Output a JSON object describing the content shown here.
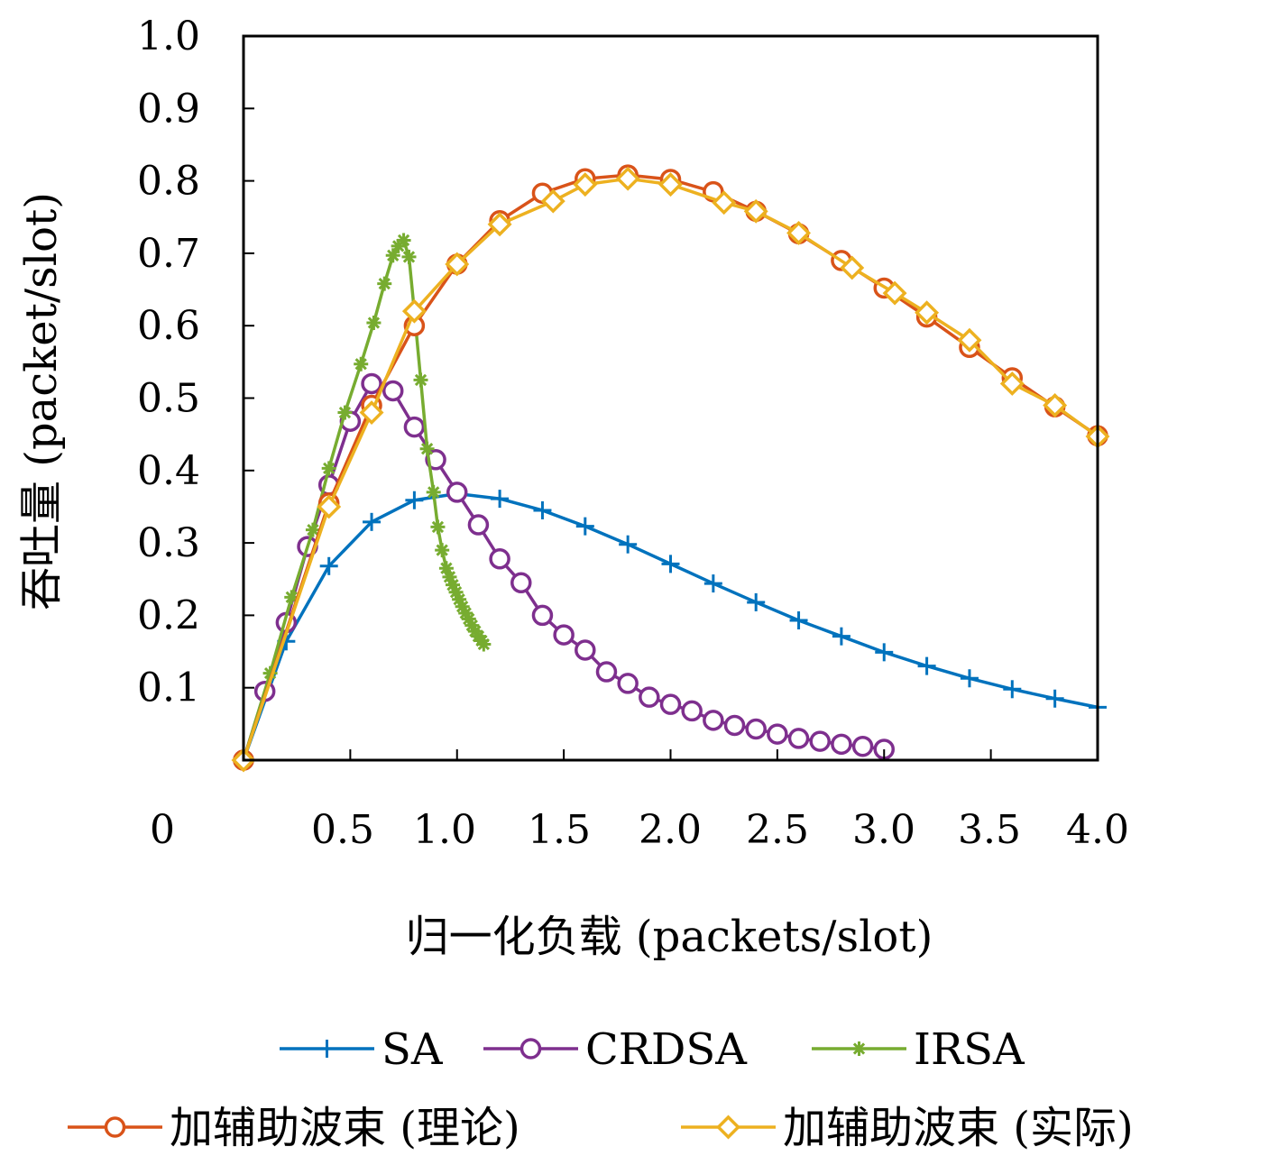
{
  "chart_data": {
    "type": "line",
    "title": "",
    "xlabel": "归一化负载 (packets/slot)",
    "ylabel": "吞吐量 (packet/slot)",
    "xlim": [
      0,
      4.0
    ],
    "ylim": [
      0,
      1.0
    ],
    "grid": false,
    "legend_position": "bottom",
    "x_tick_labels": [
      "0",
      "0.5",
      "1.0",
      "1.5",
      "2.0",
      "2.5",
      "3.0",
      "3.5",
      "4.0"
    ],
    "y_tick_labels": [
      "0.1",
      "0.2",
      "0.3",
      "0.4",
      "0.5",
      "0.6",
      "0.7",
      "0.8",
      "0.9",
      "1.0"
    ],
    "series": [
      {
        "name": "SA",
        "color": "#0072BD",
        "marker": "plus",
        "x": [
          0,
          0.2,
          0.4,
          0.6,
          0.8,
          1.0,
          1.2,
          1.4,
          1.6,
          1.8,
          2.0,
          2.2,
          2.4,
          2.6,
          2.8,
          3.0,
          3.2,
          3.4,
          3.6,
          3.8,
          4.0
        ],
        "y": [
          0,
          0.164,
          0.268,
          0.329,
          0.359,
          0.368,
          0.361,
          0.345,
          0.323,
          0.298,
          0.271,
          0.244,
          0.218,
          0.193,
          0.171,
          0.149,
          0.13,
          0.113,
          0.098,
          0.085,
          0.073
        ]
      },
      {
        "name": "CRDSA",
        "color": "#7E2F8E",
        "marker": "circle",
        "x": [
          0,
          0.1,
          0.2,
          0.3,
          0.4,
          0.5,
          0.6,
          0.7,
          0.8,
          0.9,
          1.0,
          1.1,
          1.2,
          1.3,
          1.4,
          1.5,
          1.6,
          1.7,
          1.8,
          1.9,
          2.0,
          2.1,
          2.2,
          2.3,
          2.4,
          2.5,
          2.6,
          2.7,
          2.8,
          2.9,
          3.0
        ],
        "y": [
          0,
          0.095,
          0.19,
          0.295,
          0.38,
          0.468,
          0.52,
          0.51,
          0.46,
          0.415,
          0.37,
          0.325,
          0.278,
          0.245,
          0.2,
          0.173,
          0.152,
          0.122,
          0.106,
          0.087,
          0.077,
          0.068,
          0.055,
          0.048,
          0.043,
          0.036,
          0.03,
          0.026,
          0.022,
          0.019,
          0.015
        ]
      },
      {
        "name": "IRSA",
        "color": "#77AC30",
        "marker": "asterisk",
        "x": [
          0,
          0.125,
          0.225,
          0.325,
          0.4,
          0.475,
          0.55,
          0.61,
          0.66,
          0.7,
          0.725,
          0.75,
          0.775,
          0.8,
          0.83,
          0.86,
          0.89,
          0.91,
          0.93,
          0.95,
          0.965,
          0.98,
          0.995,
          1.01,
          1.025,
          1.04,
          1.055,
          1.07,
          1.085,
          1.1,
          1.115,
          1.125
        ],
        "y": [
          0,
          0.12,
          0.225,
          0.318,
          0.403,
          0.48,
          0.547,
          0.604,
          0.658,
          0.697,
          0.71,
          0.718,
          0.695,
          0.62,
          0.525,
          0.43,
          0.37,
          0.322,
          0.29,
          0.265,
          0.253,
          0.242,
          0.232,
          0.222,
          0.212,
          0.203,
          0.195,
          0.186,
          0.178,
          0.171,
          0.165,
          0.16
        ]
      },
      {
        "name": "加辅助波束 (理论)",
        "color": "#D95319",
        "marker": "circle",
        "x": [
          0,
          0.4,
          0.6,
          0.8,
          1.0,
          1.2,
          1.4,
          1.6,
          1.8,
          2.0,
          2.2,
          2.4,
          2.6,
          2.8,
          3.0,
          3.2,
          3.4,
          3.6,
          3.8,
          4.0
        ],
        "y": [
          0,
          0.355,
          0.49,
          0.6,
          0.685,
          0.745,
          0.783,
          0.803,
          0.808,
          0.802,
          0.785,
          0.758,
          0.727,
          0.69,
          0.652,
          0.612,
          0.57,
          0.528,
          0.488,
          0.448
        ]
      },
      {
        "name": "加辅助波束 (实际)",
        "color": "#EDB120",
        "marker": "diamond",
        "x": [
          0,
          0.4,
          0.6,
          0.8,
          1.0,
          1.2,
          1.45,
          1.6,
          1.8,
          2.0,
          2.25,
          2.4,
          2.6,
          2.85,
          3.05,
          3.2,
          3.4,
          3.6,
          3.8,
          4.0
        ],
        "y": [
          0,
          0.35,
          0.48,
          0.62,
          0.685,
          0.74,
          0.772,
          0.795,
          0.803,
          0.795,
          0.77,
          0.758,
          0.728,
          0.68,
          0.645,
          0.618,
          0.58,
          0.52,
          0.49,
          0.447
        ]
      }
    ]
  }
}
